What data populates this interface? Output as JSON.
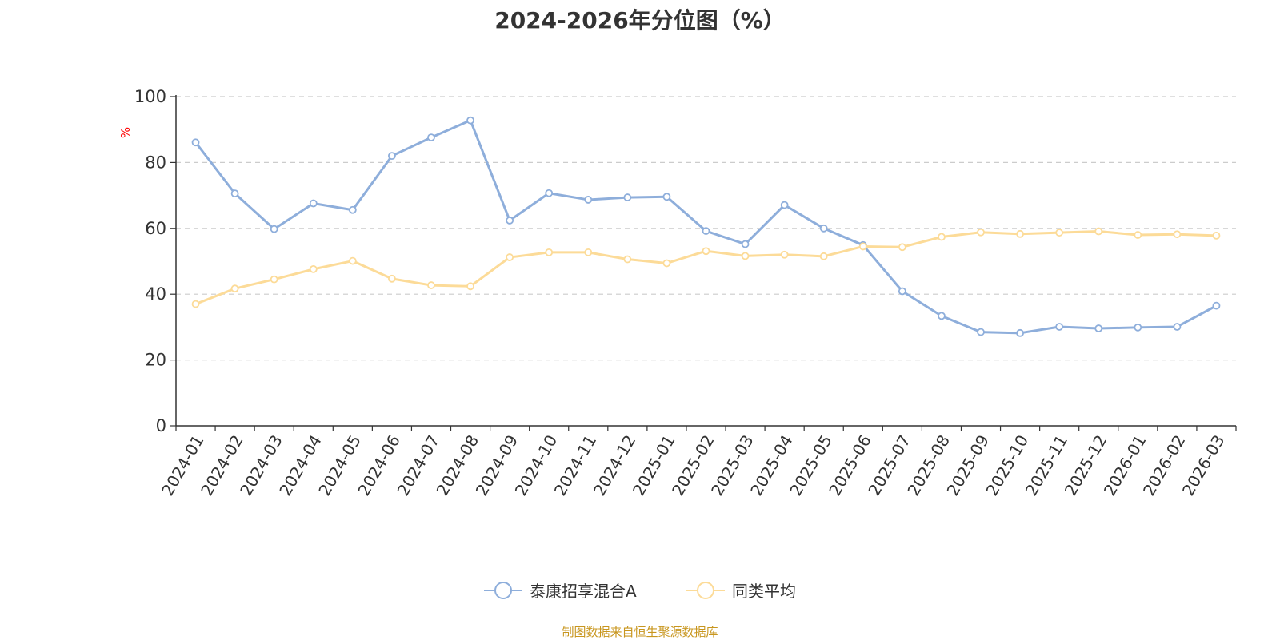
{
  "title": "2024-2026年分位图（%）",
  "footer": "制图数据来自恒生聚源数据库",
  "chart_data": {
    "type": "line",
    "title": "2024-2026年分位图（%）",
    "ylabel": "%",
    "xlabel": "",
    "ylim": [
      0,
      100
    ],
    "yticks": [
      0,
      20,
      40,
      60,
      80,
      100
    ],
    "grid": true,
    "legend_position": "bottom-center",
    "categories": [
      "2024-01",
      "2024-02",
      "2024-03",
      "2024-04",
      "2024-05",
      "2024-06",
      "2024-07",
      "2024-08",
      "2024-09",
      "2024-10",
      "2024-11",
      "2024-12",
      "2025-01",
      "2025-02",
      "2025-03",
      "2025-04",
      "2025-05",
      "2025-06",
      "2025-07",
      "2025-08",
      "2025-09",
      "2025-10",
      "2025-11",
      "2025-12",
      "2026-01",
      "2026-02",
      "2026-03"
    ],
    "series": [
      {
        "name": "泰康招享混合A",
        "color": "#8eaedb",
        "values": [
          86.1,
          70.6,
          59.8,
          67.6,
          65.6,
          82.0,
          87.6,
          92.8,
          62.4,
          70.7,
          68.7,
          69.4,
          69.6,
          59.2,
          55.2,
          67.1,
          60.0,
          54.9,
          40.9,
          33.4,
          28.5,
          28.2,
          30.1,
          29.6,
          29.9,
          30.1,
          36.5
        ]
      },
      {
        "name": "同类平均",
        "color": "#fcdb98",
        "values": [
          37.0,
          41.7,
          44.5,
          47.6,
          50.1,
          44.7,
          42.7,
          42.4,
          51.2,
          52.7,
          52.7,
          50.6,
          49.4,
          53.1,
          51.6,
          52.0,
          51.5,
          54.5,
          54.3,
          57.4,
          58.8,
          58.3,
          58.7,
          59.1,
          58.0,
          58.2,
          57.8
        ]
      }
    ]
  }
}
